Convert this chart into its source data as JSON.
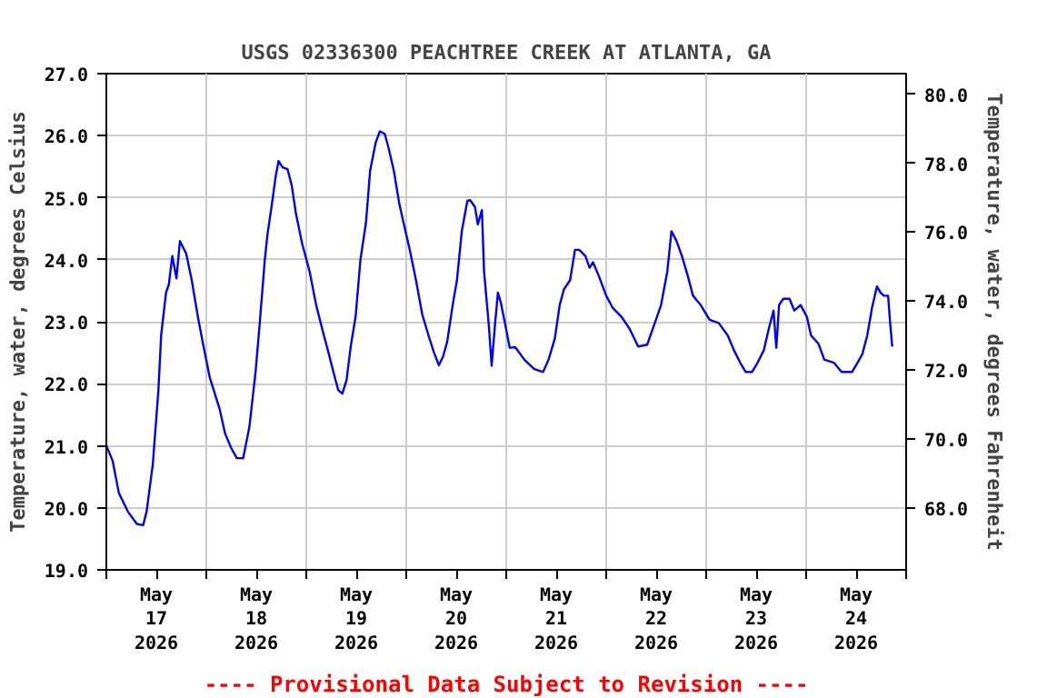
{
  "chart_data": {
    "type": "line",
    "title": "USGS 02336300 PEACHTREE CREEK AT ATLANTA, GA",
    "ylabel": "Temperature, water, degrees Celsius",
    "y2label": "Temperature, water, degrees Fahrenheit",
    "annotations": [
      "---- Provisional Data Subject to Revision ----"
    ],
    "x": [
      "2026-05-17T00:00",
      "2026-05-17T01:30",
      "2026-05-17T03:00",
      "2026-05-17T05:10",
      "2026-05-17T07:20",
      "2026-05-17T08:50",
      "2026-05-17T09:40",
      "2026-05-17T11:10",
      "2026-05-17T12:30",
      "2026-05-17T13:10",
      "2026-05-17T14:20",
      "2026-05-17T15:00",
      "2026-05-17T15:50",
      "2026-05-17T16:50",
      "2026-05-17T17:40",
      "2026-05-17T19:10",
      "2026-05-17T20:30",
      "2026-05-17T22:00",
      "2026-05-17T23:20",
      "2026-05-18T00:50",
      "2026-05-18T03:10",
      "2026-05-18T04:30",
      "2026-05-18T06:00",
      "2026-05-18T07:20",
      "2026-05-18T08:50",
      "2026-05-18T10:20",
      "2026-05-18T11:50",
      "2026-05-18T12:50",
      "2026-05-18T14:00",
      "2026-05-18T14:40",
      "2026-05-18T15:40",
      "2026-05-18T16:40",
      "2026-05-18T17:20",
      "2026-05-18T18:20",
      "2026-05-18T19:30",
      "2026-05-18T20:30",
      "2026-05-18T21:30",
      "2026-05-18T23:00",
      "2026-05-19T00:50",
      "2026-05-19T02:20",
      "2026-05-19T03:50",
      "2026-05-19T05:20",
      "2026-05-19T06:40",
      "2026-05-19T07:40",
      "2026-05-19T08:40",
      "2026-05-19T09:40",
      "2026-05-19T10:40",
      "2026-05-19T11:50",
      "2026-05-19T13:00",
      "2026-05-19T14:20",
      "2026-05-19T15:20",
      "2026-05-19T16:40",
      "2026-05-19T17:40",
      "2026-05-19T18:50",
      "2026-05-19T19:50",
      "2026-05-19T21:00",
      "2026-05-19T22:20",
      "2026-05-19T23:20",
      "2026-05-20T00:50",
      "2026-05-20T02:20",
      "2026-05-20T03:50",
      "2026-05-20T05:20",
      "2026-05-20T06:40",
      "2026-05-20T07:50",
      "2026-05-20T08:50",
      "2026-05-20T09:50",
      "2026-05-20T11:10",
      "2026-05-20T12:10",
      "2026-05-20T13:20",
      "2026-05-20T14:40",
      "2026-05-20T15:20",
      "2026-05-20T16:30",
      "2026-05-20T17:10",
      "2026-05-20T18:10",
      "2026-05-20T18:40",
      "2026-05-20T19:50",
      "2026-05-20T20:30",
      "2026-05-20T21:20",
      "2026-05-20T22:00",
      "2026-05-20T22:40",
      "2026-05-20T23:50",
      "2026-05-21T00:50",
      "2026-05-21T02:10",
      "2026-05-21T04:20",
      "2026-05-21T06:40",
      "2026-05-21T08:50",
      "2026-05-21T10:10",
      "2026-05-21T11:40",
      "2026-05-21T12:50",
      "2026-05-21T13:50",
      "2026-05-21T15:20",
      "2026-05-21T16:30",
      "2026-05-21T17:30",
      "2026-05-21T19:00",
      "2026-05-21T20:00",
      "2026-05-21T20:50",
      "2026-05-21T22:20",
      "2026-05-22T00:00",
      "2026-05-22T01:30",
      "2026-05-22T03:40",
      "2026-05-22T05:40",
      "2026-05-22T07:40",
      "2026-05-22T09:50",
      "2026-05-22T11:40",
      "2026-05-22T13:10",
      "2026-05-22T14:40",
      "2026-05-22T15:40",
      "2026-05-22T16:50",
      "2026-05-22T18:10",
      "2026-05-22T19:40",
      "2026-05-22T20:50",
      "2026-05-22T22:40",
      "2026-05-23T00:50",
      "2026-05-23T03:00",
      "2026-05-23T05:10",
      "2026-05-23T06:40",
      "2026-05-23T08:10",
      "2026-05-23T09:30",
      "2026-05-23T11:00",
      "2026-05-23T12:20",
      "2026-05-23T13:50",
      "2026-05-23T15:00",
      "2026-05-23T16:10",
      "2026-05-23T16:50",
      "2026-05-23T17:30",
      "2026-05-23T18:30",
      "2026-05-23T20:00",
      "2026-05-23T21:10",
      "2026-05-23T22:40",
      "2026-05-24T00:10",
      "2026-05-24T01:10",
      "2026-05-24T03:00",
      "2026-05-24T04:20",
      "2026-05-24T06:40",
      "2026-05-24T08:30",
      "2026-05-24T11:00",
      "2026-05-24T12:20",
      "2026-05-24T13:30",
      "2026-05-24T14:40",
      "2026-05-24T15:50",
      "2026-05-24T17:00",
      "2026-05-24T17:50",
      "2026-05-24T18:40",
      "2026-05-24T19:40",
      "2026-05-24T20:10",
      "2026-05-24T20:40"
    ],
    "series": [
      {
        "color": "#0000ff",
        "values": [
          21.0,
          20.76,
          20.24,
          19.94,
          19.74,
          19.72,
          19.94,
          20.71,
          21.9,
          22.79,
          23.47,
          23.6,
          24.06,
          23.7,
          24.3,
          24.1,
          23.67,
          23.07,
          22.6,
          22.1,
          21.6,
          21.2,
          20.96,
          20.8,
          20.8,
          21.3,
          22.2,
          22.98,
          23.97,
          24.4,
          24.86,
          25.35,
          25.59,
          25.49,
          25.46,
          25.2,
          24.75,
          24.26,
          23.8,
          23.28,
          22.88,
          22.5,
          22.15,
          21.9,
          21.84,
          22.06,
          22.6,
          23.08,
          24.0,
          24.6,
          25.44,
          25.89,
          26.07,
          26.03,
          25.78,
          25.44,
          24.9,
          24.6,
          24.16,
          23.67,
          23.12,
          22.78,
          22.5,
          22.3,
          22.44,
          22.68,
          23.28,
          23.67,
          24.46,
          24.95,
          24.96,
          24.85,
          24.57,
          24.8,
          23.82,
          22.93,
          22.29,
          22.98,
          23.47,
          23.32,
          22.93,
          22.58,
          22.59,
          22.39,
          22.24,
          22.19,
          22.39,
          22.73,
          23.27,
          23.52,
          23.67,
          24.16,
          24.16,
          24.06,
          23.87,
          23.96,
          23.72,
          23.42,
          23.23,
          23.08,
          22.88,
          22.6,
          22.63,
          22.98,
          23.27,
          23.81,
          24.46,
          24.31,
          24.06,
          23.72,
          23.42,
          23.27,
          23.03,
          22.98,
          22.78,
          22.54,
          22.34,
          22.19,
          22.19,
          22.34,
          22.54,
          22.88,
          23.18,
          22.58,
          23.27,
          23.37,
          23.37,
          23.18,
          23.27,
          23.08,
          22.78,
          22.64,
          22.39,
          22.34,
          22.19,
          22.19,
          22.34,
          22.48,
          22.78,
          23.23,
          23.57,
          23.47,
          23.42,
          23.42,
          22.98,
          22.6
        ]
      }
    ],
    "xlim": [
      "2026-05-17T00:00",
      "2026-05-25T00:00"
    ],
    "xticks": [
      {
        "value": "2026-05-17T00:00",
        "label": null
      },
      {
        "value": "2026-05-17T12:00",
        "label": "May\n17\n2026"
      },
      {
        "value": "2026-05-18T00:00",
        "label": null
      },
      {
        "value": "2026-05-18T12:00",
        "label": "May\n18\n2026"
      },
      {
        "value": "2026-05-19T00:00",
        "label": null
      },
      {
        "value": "2026-05-19T12:00",
        "label": "May\n19\n2026"
      },
      {
        "value": "2026-05-20T00:00",
        "label": null
      },
      {
        "value": "2026-05-20T12:00",
        "label": "May\n20\n2026"
      },
      {
        "value": "2026-05-21T00:00",
        "label": null
      },
      {
        "value": "2026-05-21T12:00",
        "label": "May\n21\n2026"
      },
      {
        "value": "2026-05-22T00:00",
        "label": null
      },
      {
        "value": "2026-05-22T12:00",
        "label": "May\n22\n2026"
      },
      {
        "value": "2026-05-23T00:00",
        "label": null
      },
      {
        "value": "2026-05-23T12:00",
        "label": "May\n23\n2026"
      },
      {
        "value": "2026-05-24T00:00",
        "label": null
      },
      {
        "value": "2026-05-24T12:00",
        "label": "May\n24\n2026"
      },
      {
        "value": "2026-05-25T00:00",
        "label": null
      }
    ],
    "ylim": [
      19.0,
      27.0
    ],
    "yticks": [
      {
        "value": 19,
        "label": "19.0"
      },
      {
        "value": 20,
        "label": "20.0"
      },
      {
        "value": 21,
        "label": "21.0"
      },
      {
        "value": 22,
        "label": "22.0"
      },
      {
        "value": 23,
        "label": "23.0"
      },
      {
        "value": 24,
        "label": "24.0"
      },
      {
        "value": 25,
        "label": "25.0"
      },
      {
        "value": 26,
        "label": "26.0"
      },
      {
        "value": 27,
        "label": "27.0"
      }
    ],
    "y2lim": [
      66.2,
      80.6
    ],
    "y2ticks": [
      {
        "value": 68,
        "label": "68.0"
      },
      {
        "value": 70,
        "label": "70.0"
      },
      {
        "value": 72,
        "label": "72.0"
      },
      {
        "value": 74,
        "label": "74.0"
      },
      {
        "value": 76,
        "label": "76.0"
      },
      {
        "value": 78,
        "label": "78.0"
      },
      {
        "value": 80,
        "label": "80.0"
      }
    ],
    "grid": true,
    "line_style": "solid",
    "marker": "none"
  }
}
